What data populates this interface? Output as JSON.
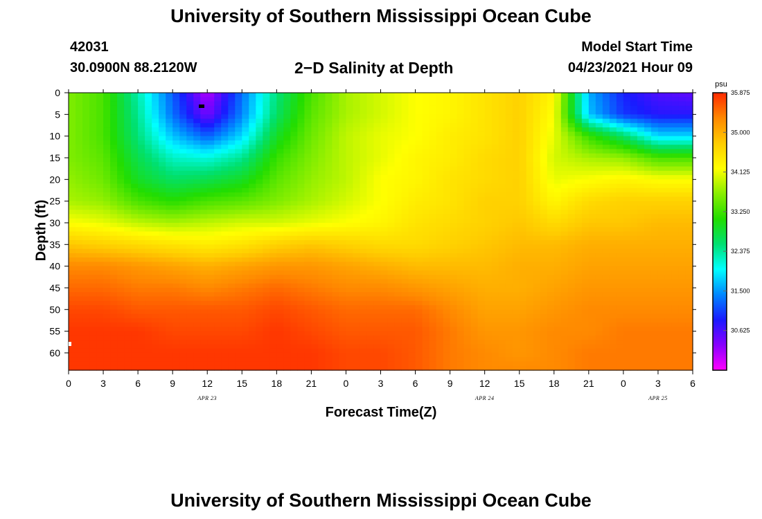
{
  "header": {
    "title": "University of Southern Mississippi Ocean Cube",
    "station_id": "42031",
    "station_location": "30.0900N  88.2120W",
    "plot_title": "2−D Salinity at Depth",
    "model_start_label": "Model Start Time",
    "model_start_value": "04/23/2021 Hour 09"
  },
  "footer": {
    "title": "University of Southern Mississippi Ocean Cube"
  },
  "chart_data": {
    "type": "heatmap",
    "title": "2−D Salinity at Depth",
    "xlabel": "Forecast Time(Z)",
    "ylabel": "Depth (ft)",
    "x_hours": [
      0,
      3,
      6,
      9,
      12,
      15,
      18,
      21,
      24,
      27,
      30,
      33,
      36,
      39,
      42,
      45,
      48,
      51,
      54
    ],
    "x_tick_labels": [
      "0",
      "3",
      "6",
      "9",
      "12",
      "15",
      "18",
      "21",
      "0",
      "3",
      "6",
      "9",
      "12",
      "15",
      "18",
      "21",
      "0",
      "3",
      "6"
    ],
    "date_labels": [
      {
        "hour": 12,
        "label": "APR 23"
      },
      {
        "hour": 36,
        "label": "APR 24"
      },
      {
        "hour": 51,
        "label": "APR 25"
      }
    ],
    "y_ticks": [
      0,
      5,
      10,
      15,
      20,
      25,
      30,
      35,
      40,
      45,
      50,
      55,
      60
    ],
    "ylim": [
      0,
      64
    ],
    "xlim": [
      0,
      54
    ],
    "depths": [
      0,
      5,
      10,
      15,
      20,
      25,
      30,
      35,
      40,
      45,
      50,
      55,
      60,
      64
    ],
    "salinity_psu": [
      [
        33.6,
        33.3,
        32.3,
        31.2,
        30.1,
        31.3,
        32.5,
        33.3,
        33.8,
        34.0,
        34.2,
        34.3,
        34.5,
        34.7,
        34.3,
        31.6,
        30.9,
        30.6,
        30.5
      ],
      [
        33.6,
        33.3,
        32.4,
        31.3,
        30.4,
        31.4,
        32.6,
        33.4,
        33.8,
        34.0,
        34.2,
        34.3,
        34.5,
        34.7,
        34.2,
        31.7,
        31.0,
        30.8,
        30.8
      ],
      [
        33.6,
        33.3,
        32.5,
        31.7,
        31.2,
        31.8,
        32.9,
        33.5,
        33.9,
        34.1,
        34.2,
        34.4,
        34.5,
        34.7,
        34.1,
        33.2,
        32.6,
        31.8,
        31.8
      ],
      [
        33.6,
        33.4,
        32.7,
        32.2,
        32.1,
        32.4,
        33.2,
        33.6,
        33.9,
        34.1,
        34.3,
        34.4,
        34.6,
        34.7,
        34.0,
        33.8,
        33.7,
        33.3,
        33.3
      ],
      [
        33.7,
        33.5,
        32.9,
        32.6,
        32.7,
        32.9,
        33.4,
        33.7,
        33.9,
        34.2,
        34.3,
        34.5,
        34.6,
        34.7,
        34.1,
        34.2,
        34.3,
        34.2,
        34.2
      ],
      [
        33.8,
        33.7,
        33.3,
        33.1,
        33.3,
        33.4,
        33.6,
        33.8,
        34.0,
        34.2,
        34.4,
        34.5,
        34.7,
        34.7,
        34.3,
        34.6,
        34.7,
        34.7,
        34.7
      ],
      [
        34.2,
        34.1,
        33.9,
        33.8,
        33.9,
        34.0,
        34.0,
        34.1,
        34.2,
        34.3,
        34.5,
        34.6,
        34.7,
        34.8,
        34.6,
        34.8,
        34.8,
        34.9,
        34.9
      ],
      [
        34.8,
        34.7,
        34.6,
        34.5,
        34.4,
        34.5,
        34.7,
        34.8,
        34.7,
        34.6,
        34.6,
        34.7,
        34.8,
        34.9,
        34.9,
        35.0,
        35.0,
        35.0,
        35.0
      ],
      [
        35.3,
        35.3,
        35.2,
        35.1,
        35.0,
        35.1,
        35.2,
        35.2,
        35.1,
        35.0,
        34.9,
        34.9,
        34.9,
        35.0,
        35.0,
        35.1,
        35.1,
        35.1,
        35.1
      ],
      [
        35.5,
        35.5,
        35.4,
        35.4,
        35.3,
        35.4,
        35.5,
        35.4,
        35.3,
        35.3,
        35.2,
        35.1,
        35.0,
        35.0,
        35.1,
        35.2,
        35.2,
        35.2,
        35.2
      ],
      [
        35.7,
        35.7,
        35.6,
        35.6,
        35.6,
        35.6,
        35.7,
        35.6,
        35.5,
        35.5,
        35.5,
        35.3,
        35.1,
        35.1,
        35.2,
        35.3,
        35.3,
        35.3,
        35.3
      ],
      [
        35.8,
        35.8,
        35.8,
        35.7,
        35.7,
        35.7,
        35.8,
        35.7,
        35.6,
        35.6,
        35.6,
        35.4,
        35.2,
        35.2,
        35.3,
        35.3,
        35.4,
        35.4,
        35.4
      ],
      [
        35.8,
        35.8,
        35.8,
        35.8,
        35.8,
        35.8,
        35.8,
        35.8,
        35.7,
        35.7,
        35.6,
        35.4,
        35.3,
        35.2,
        35.3,
        35.4,
        35.4,
        35.4,
        35.4
      ],
      [
        35.8,
        35.8,
        35.8,
        35.8,
        35.8,
        35.8,
        35.8,
        35.8,
        35.7,
        35.7,
        35.6,
        35.4,
        35.3,
        35.3,
        35.3,
        35.4,
        35.4,
        35.4,
        35.4
      ]
    ],
    "colorbar": {
      "unit": "psu",
      "min": 29.75,
      "max": 35.875,
      "labels": [
        "35.875",
        "35.000",
        "34.125",
        "33.250",
        "32.375",
        "31.500",
        "30.625"
      ],
      "colors": [
        "#ff00ff",
        "#8800ff",
        "#1a1aff",
        "#0088ff",
        "#00ffff",
        "#00e070",
        "#22dd00",
        "#88ee00",
        "#ffff00",
        "#ffcc00",
        "#ff8800",
        "#ff2a00"
      ]
    }
  }
}
